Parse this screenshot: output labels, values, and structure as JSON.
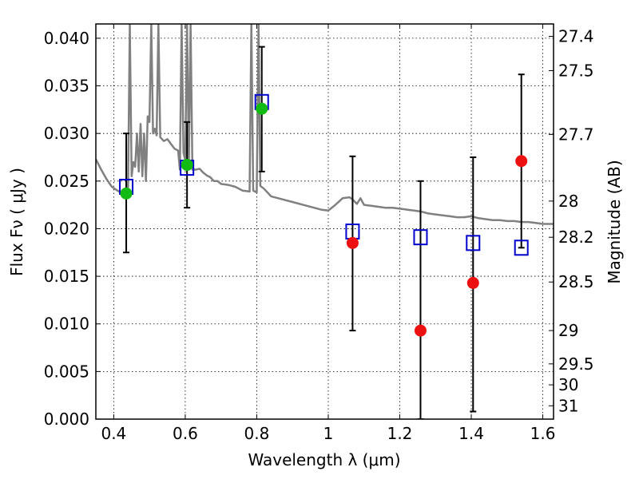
{
  "chart_data": {
    "type": "scatter",
    "title": "",
    "xlabel": "Wavelength  λ (μm)",
    "ylabel_left": "Flux  Fν  ( μJy )",
    "ylabel_right": "Magnitude (AB)",
    "xlim": [
      0.35,
      1.63
    ],
    "ylim": [
      0.0,
      0.0415
    ],
    "grid": true,
    "x_ticks": [
      0.4,
      0.6,
      0.8,
      1.0,
      1.2,
      1.4,
      1.6
    ],
    "x_tick_labels": [
      "0.4",
      "0.6",
      "0.8",
      "1",
      "1.2",
      "1.4",
      "1.6"
    ],
    "y_ticks": [
      0.0,
      0.005,
      0.01,
      0.015,
      0.02,
      0.025,
      0.03,
      0.035,
      0.04
    ],
    "y_tick_labels": [
      "0.000",
      "0.005",
      "0.010",
      "0.015",
      "0.020",
      "0.025",
      "0.030",
      "0.035",
      "0.040"
    ],
    "right_ticks": [
      {
        "label": "27.4",
        "flux": 0.0402
      },
      {
        "label": "27.5",
        "flux": 0.0366
      },
      {
        "label": "27.7",
        "flux": 0.0299
      },
      {
        "label": "28",
        "flux": 0.0229
      },
      {
        "label": "28.2",
        "flux": 0.0191
      },
      {
        "label": "28.5",
        "flux": 0.0144
      },
      {
        "label": "29",
        "flux": 0.0093
      },
      {
        "label": "29.5",
        "flux": 0.0058
      },
      {
        "label": "30",
        "flux": 0.0036
      },
      {
        "label": "31",
        "flux": 0.0014
      }
    ],
    "series": [
      {
        "marker": "open-square",
        "color": "#0000cc",
        "points": [
          {
            "x": 0.435,
            "y": 0.0244
          },
          {
            "x": 0.605,
            "y": 0.0264
          },
          {
            "x": 0.814,
            "y": 0.0333
          },
          {
            "x": 1.068,
            "y": 0.0197
          },
          {
            "x": 1.258,
            "y": 0.0191
          },
          {
            "x": 1.405,
            "y": 0.0185
          },
          {
            "x": 1.54,
            "y": 0.018
          }
        ]
      },
      {
        "marker": "filled-circle",
        "color": "#11bb11",
        "points": [
          {
            "x": 0.435,
            "y": 0.0237,
            "yerr_low": 0.0175,
            "yerr_high": 0.03
          },
          {
            "x": 0.605,
            "y": 0.0267,
            "yerr_low": 0.0222,
            "yerr_high": 0.0312
          },
          {
            "x": 0.814,
            "y": 0.0326,
            "yerr_low": 0.026,
            "yerr_high": 0.0391
          }
        ]
      },
      {
        "marker": "filled-circle",
        "color": "#ee1111",
        "points": [
          {
            "x": 1.068,
            "y": 0.0185,
            "yerr_low": 0.0093,
            "yerr_high": 0.0276
          },
          {
            "x": 1.258,
            "y": 0.0093,
            "yerr_low": 0.0,
            "yerr_high": 0.025
          },
          {
            "x": 1.405,
            "y": 0.0143,
            "yerr_low": 0.0008,
            "yerr_high": 0.0275
          },
          {
            "x": 1.54,
            "y": 0.0271,
            "yerr_low": 0.018,
            "yerr_high": 0.0362
          }
        ]
      }
    ],
    "sed_curve": {
      "color": "#808080",
      "points": [
        [
          0.35,
          0.0273
        ],
        [
          0.365,
          0.0262
        ],
        [
          0.38,
          0.0252
        ],
        [
          0.395,
          0.0244
        ],
        [
          0.41,
          0.024
        ],
        [
          0.42,
          0.0238
        ],
        [
          0.43,
          0.024
        ],
        [
          0.44,
          0.0242
        ],
        [
          0.445,
          0.0415
        ],
        [
          0.45,
          0.0255
        ],
        [
          0.455,
          0.027
        ],
        [
          0.46,
          0.0265
        ],
        [
          0.465,
          0.03
        ],
        [
          0.47,
          0.026
        ],
        [
          0.475,
          0.031
        ],
        [
          0.48,
          0.0255
        ],
        [
          0.485,
          0.03
        ],
        [
          0.49,
          0.025
        ],
        [
          0.495,
          0.0318
        ],
        [
          0.5,
          0.0312
        ],
        [
          0.505,
          0.0415
        ],
        [
          0.51,
          0.03
        ],
        [
          0.515,
          0.0305
        ],
        [
          0.52,
          0.0298
        ],
        [
          0.525,
          0.0415
        ],
        [
          0.53,
          0.0296
        ],
        [
          0.54,
          0.0292
        ],
        [
          0.55,
          0.0294
        ],
        [
          0.56,
          0.0289
        ],
        [
          0.57,
          0.0284
        ],
        [
          0.58,
          0.0282
        ],
        [
          0.585,
          0.0262
        ],
        [
          0.59,
          0.0415
        ],
        [
          0.595,
          0.028
        ],
        [
          0.6,
          0.0272
        ],
        [
          0.605,
          0.0415
        ],
        [
          0.61,
          0.0268
        ],
        [
          0.615,
          0.0415
        ],
        [
          0.62,
          0.0262
        ],
        [
          0.63,
          0.0262
        ],
        [
          0.64,
          0.0263
        ],
        [
          0.65,
          0.0259
        ],
        [
          0.66,
          0.0256
        ],
        [
          0.67,
          0.0254
        ],
        [
          0.68,
          0.025
        ],
        [
          0.69,
          0.025
        ],
        [
          0.7,
          0.0247
        ],
        [
          0.72,
          0.0246
        ],
        [
          0.74,
          0.0244
        ],
        [
          0.76,
          0.024
        ],
        [
          0.78,
          0.0239
        ],
        [
          0.785,
          0.0415
        ],
        [
          0.79,
          0.024
        ],
        [
          0.8,
          0.0238
        ],
        [
          0.805,
          0.0415
        ],
        [
          0.81,
          0.0245
        ],
        [
          0.82,
          0.0242
        ],
        [
          0.84,
          0.0234
        ],
        [
          0.86,
          0.0232
        ],
        [
          0.88,
          0.023
        ],
        [
          0.9,
          0.0228
        ],
        [
          0.92,
          0.0226
        ],
        [
          0.94,
          0.0224
        ],
        [
          0.96,
          0.0222
        ],
        [
          0.98,
          0.022
        ],
        [
          1.0,
          0.0219
        ],
        [
          1.02,
          0.0225
        ],
        [
          1.04,
          0.0232
        ],
        [
          1.06,
          0.0233
        ],
        [
          1.07,
          0.023
        ],
        [
          1.08,
          0.0226
        ],
        [
          1.09,
          0.0232
        ],
        [
          1.1,
          0.0225
        ],
        [
          1.12,
          0.0224
        ],
        [
          1.14,
          0.0223
        ],
        [
          1.16,
          0.0222
        ],
        [
          1.18,
          0.0222
        ],
        [
          1.2,
          0.0221
        ],
        [
          1.22,
          0.022
        ],
        [
          1.24,
          0.0219
        ],
        [
          1.26,
          0.0218
        ],
        [
          1.28,
          0.0216
        ],
        [
          1.3,
          0.0215
        ],
        [
          1.32,
          0.0214
        ],
        [
          1.34,
          0.0213
        ],
        [
          1.36,
          0.0212
        ],
        [
          1.38,
          0.0212
        ],
        [
          1.4,
          0.0213
        ],
        [
          1.42,
          0.0211
        ],
        [
          1.44,
          0.021
        ],
        [
          1.46,
          0.0209
        ],
        [
          1.48,
          0.0209
        ],
        [
          1.5,
          0.0208
        ],
        [
          1.52,
          0.0208
        ],
        [
          1.54,
          0.0207
        ],
        [
          1.56,
          0.0207
        ],
        [
          1.58,
          0.0206
        ],
        [
          1.6,
          0.0205
        ],
        [
          1.63,
          0.0205
        ]
      ]
    }
  }
}
